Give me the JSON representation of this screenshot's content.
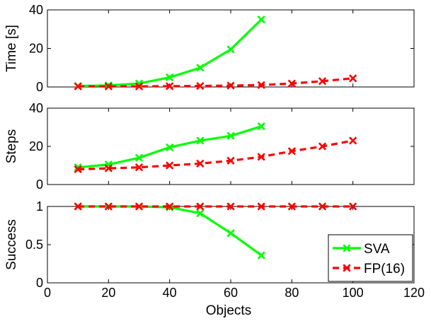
{
  "chart_data": [
    {
      "type": "line",
      "ylabel": "Time [s]",
      "xlim": [
        0,
        120
      ],
      "ylim": [
        0,
        40
      ],
      "yticks": [
        0,
        20,
        40
      ],
      "series": [
        {
          "name": "SVA",
          "color": "#00ff00",
          "style": "solid",
          "x": [
            10,
            20,
            30,
            40,
            50,
            60,
            70
          ],
          "y": [
            0.5,
            0.8,
            1.8,
            5.0,
            10.0,
            19.5,
            35.0
          ]
        },
        {
          "name": "FP(16)",
          "color": "#ff0000",
          "style": "dashed",
          "x": [
            10,
            20,
            30,
            40,
            50,
            60,
            70,
            80,
            90,
            100
          ],
          "y": [
            0.3,
            0.3,
            0.3,
            0.4,
            0.5,
            0.7,
            1.0,
            1.8,
            3.0,
            4.5
          ]
        }
      ]
    },
    {
      "type": "line",
      "ylabel": "Steps",
      "xlim": [
        0,
        120
      ],
      "ylim": [
        0,
        40
      ],
      "yticks": [
        0,
        20,
        40
      ],
      "series": [
        {
          "name": "SVA",
          "color": "#00ff00",
          "style": "solid",
          "x": [
            10,
            20,
            30,
            40,
            50,
            60,
            70
          ],
          "y": [
            9,
            10.5,
            14,
            19.5,
            23,
            25.5,
            30.5
          ]
        },
        {
          "name": "FP(16)",
          "color": "#ff0000",
          "style": "dashed",
          "x": [
            10,
            20,
            30,
            40,
            50,
            60,
            70,
            80,
            90,
            100
          ],
          "y": [
            8,
            8.5,
            9,
            10,
            11,
            12.5,
            14.5,
            17.5,
            20,
            23
          ]
        }
      ]
    },
    {
      "type": "line",
      "ylabel": "Success",
      "xlabel": "Objects",
      "xlim": [
        0,
        120
      ],
      "ylim": [
        0,
        1
      ],
      "yticks": [
        0,
        0.5,
        1
      ],
      "xticks": [
        0,
        20,
        40,
        60,
        80,
        100,
        120
      ],
      "legend": "bottom-right",
      "series": [
        {
          "name": "SVA",
          "color": "#00ff00",
          "style": "solid",
          "x": [
            10,
            20,
            30,
            40,
            50,
            60,
            70
          ],
          "y": [
            1,
            1,
            1,
            0.99,
            0.91,
            0.65,
            0.36
          ]
        },
        {
          "name": "FP(16)",
          "color": "#ff0000",
          "style": "dashed",
          "x": [
            10,
            20,
            30,
            40,
            50,
            60,
            70,
            80,
            90,
            100
          ],
          "y": [
            1,
            1,
            1,
            1,
            1,
            1,
            1,
            1,
            1,
            1
          ]
        }
      ]
    }
  ]
}
